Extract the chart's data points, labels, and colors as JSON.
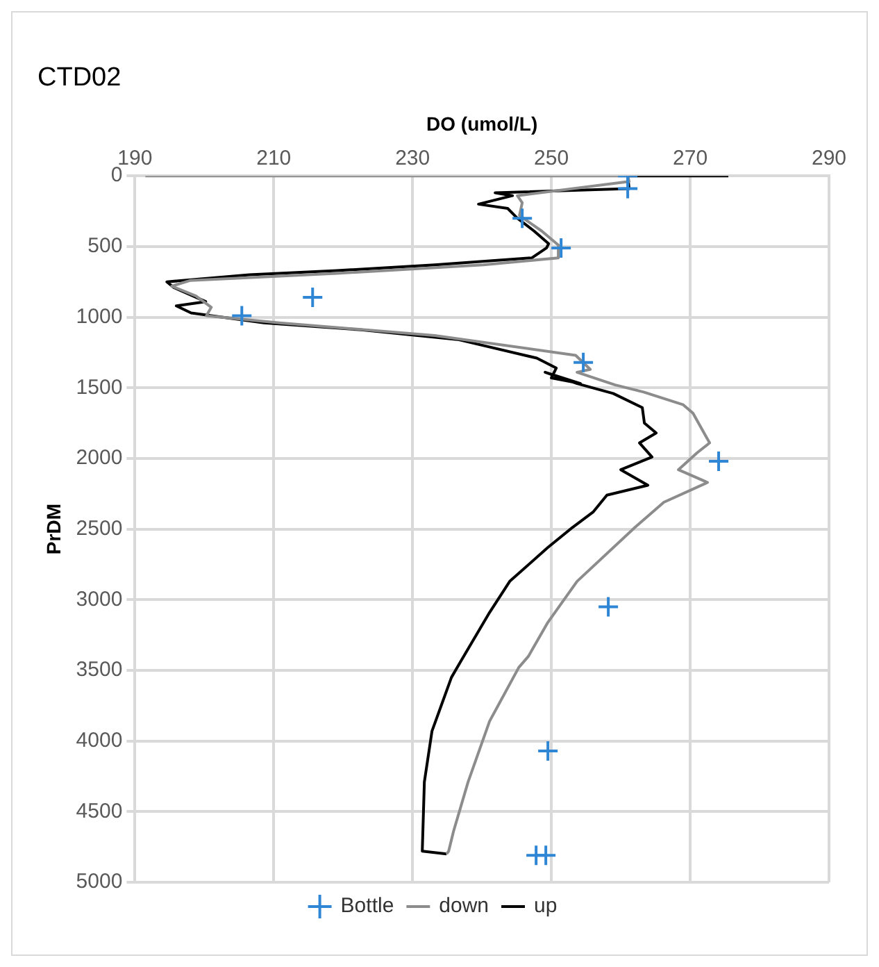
{
  "chart_data": {
    "type": "line",
    "title": "CTD02",
    "xlabel": "DO (umol/L)",
    "ylabel": "PrDM",
    "xlim": [
      190,
      290
    ],
    "xticks": [
      190,
      210,
      230,
      250,
      270,
      290
    ],
    "ylim": [
      5000,
      0
    ],
    "yticks": [
      0,
      500,
      1000,
      1500,
      2000,
      2500,
      3000,
      3500,
      4000,
      4500,
      5000
    ],
    "grid": true,
    "legend": "bottom",
    "series": [
      {
        "name": "down",
        "color": "#8c8c8c",
        "marker": "none",
        "line_style": "solid",
        "x": [
          191.5,
          261,
          261.2,
          245.1,
          245.8,
          245.4,
          248.6,
          251,
          251,
          240.2,
          219.1,
          198,
          195.3,
          198.8,
          201,
          200.3,
          210.8,
          233.2,
          253.5,
          255.6,
          253.7,
          259.2,
          263.3,
          269,
          270.4,
          272.8,
          271,
          268.3,
          272.5,
          266.2,
          262,
          253.7,
          249.5,
          246.7,
          245.3,
          241.1,
          238,
          235.9,
          235.2,
          234.9
        ],
        "values": [
          0,
          0,
          40,
          140,
          190,
          280,
          390,
          490,
          580,
          630,
          690,
          740,
          780,
          850,
          930,
          990,
          1040,
          1130,
          1270,
          1370,
          1390,
          1480,
          1530,
          1620,
          1680,
          1890,
          1960,
          2080,
          2170,
          2310,
          2490,
          2870,
          3160,
          3400,
          3480,
          3860,
          4290,
          4640,
          4780,
          4800
        ]
      },
      {
        "name": "up",
        "color": "#000000",
        "marker": "none",
        "line_style": "solid",
        "x": [
          234.9,
          231.4,
          231.7,
          232.8,
          235.6,
          236.9,
          241.1,
          244,
          249.5,
          253,
          256,
          258,
          263.9,
          260,
          264.5,
          262.7,
          265.1,
          263.4,
          263.1,
          258.9,
          253.7,
          249.1,
          254.2,
          250,
          250.7,
          247.9,
          236.7,
          222.6,
          208.6,
          198.1,
          195.96,
          200.2,
          195.6,
          194.6,
          206.5,
          219.1,
          233.2,
          247.2,
          249.3,
          249.6,
          247.5,
          245.1,
          243.7,
          239.5,
          244.4,
          241.9,
          261.2,
          261,
          275.5
        ],
        "values": [
          4800,
          4780,
          4290,
          3930,
          3550,
          3440,
          3090,
          2870,
          2630,
          2490,
          2380,
          2260,
          2190,
          2080,
          1990,
          1890,
          1820,
          1750,
          1640,
          1540,
          1470,
          1390,
          1470,
          1430,
          1360,
          1290,
          1160,
          1090,
          1040,
          970,
          920,
          890,
          790,
          750,
          700,
          670,
          630,
          580,
          510,
          480,
          390,
          300,
          230,
          200,
          140,
          120,
          90,
          0,
          0
        ]
      },
      {
        "name": "Bottle",
        "type": "scatter",
        "color": "#2e86d4",
        "marker": "cross",
        "x": [
          261,
          261,
          245.8,
          251.4,
          215.6,
          205.4,
          254.6,
          274.1,
          258.2,
          249.5,
          247.8,
          249.2
        ],
        "values": [
          0,
          90,
          300,
          510,
          860,
          990,
          1320,
          2020,
          3050,
          4070,
          4810,
          4810
        ]
      }
    ]
  }
}
